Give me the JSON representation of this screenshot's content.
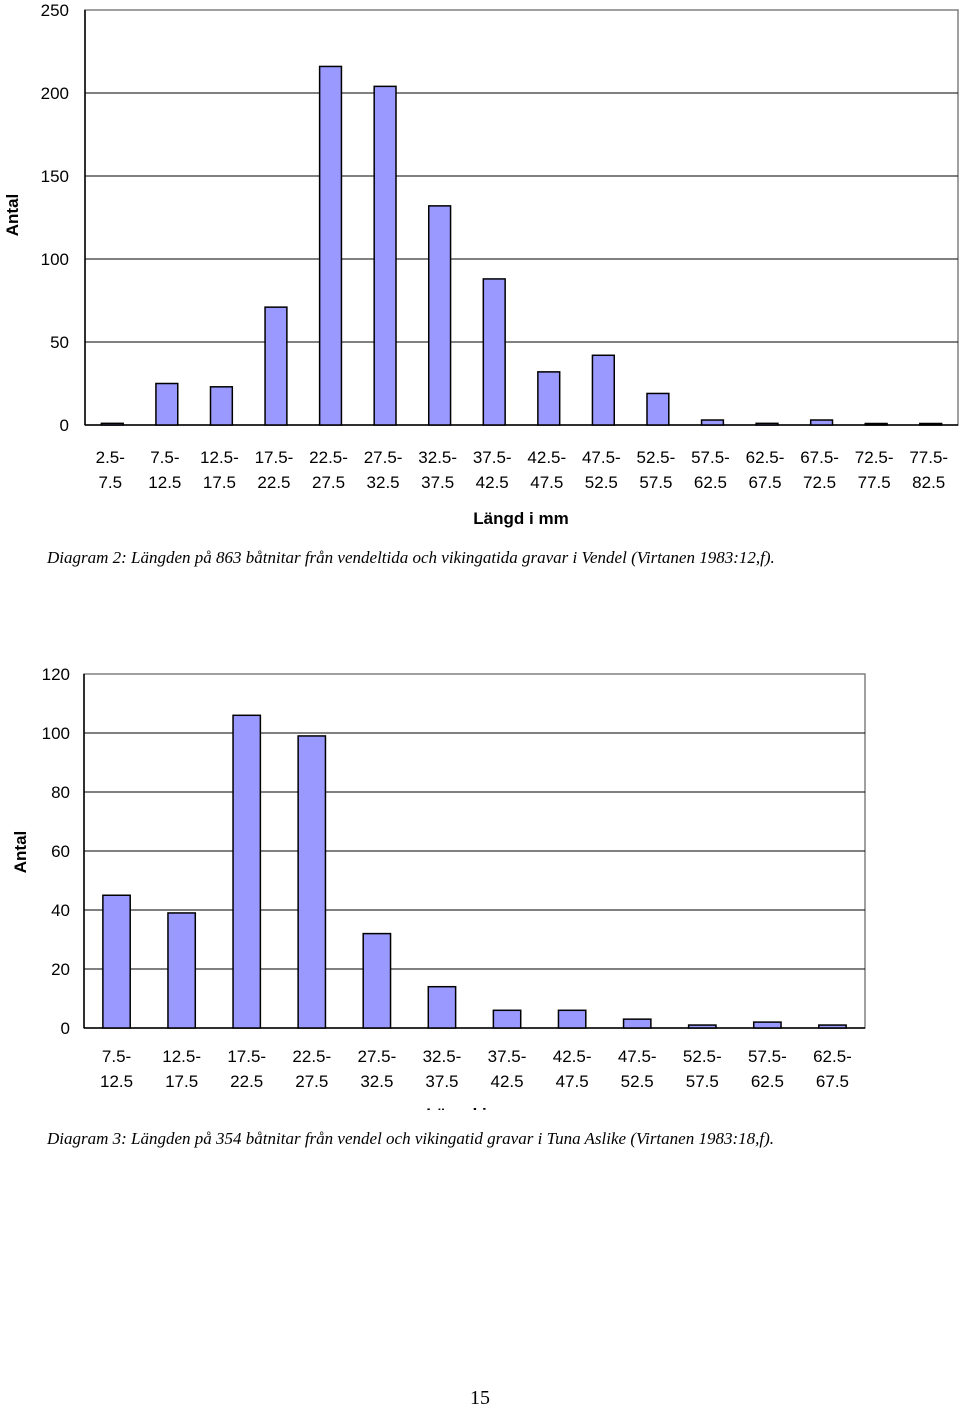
{
  "chart_data": [
    {
      "type": "bar",
      "title": "",
      "xlabel": "Längd i mm",
      "ylabel": "Antal",
      "ylim": [
        0,
        250
      ],
      "yticks": [
        0,
        50,
        100,
        150,
        200,
        250
      ],
      "grid": true,
      "bar_color": "#9999ff",
      "categories": [
        [
          "2.5-",
          "7.5"
        ],
        [
          "7.5-",
          "12.5"
        ],
        [
          "12.5-",
          "17.5"
        ],
        [
          "17.5-",
          "22.5"
        ],
        [
          "22.5-",
          "27.5"
        ],
        [
          "27.5-",
          "32.5"
        ],
        [
          "32.5-",
          "37.5"
        ],
        [
          "37.5-",
          "42.5"
        ],
        [
          "42.5-",
          "47.5"
        ],
        [
          "47.5-",
          "52.5"
        ],
        [
          "52.5-",
          "57.5"
        ],
        [
          "57.5-",
          "62.5"
        ],
        [
          "62.5-",
          "67.5"
        ],
        [
          "67.5-",
          "72.5"
        ],
        [
          "72.5-",
          "77.5"
        ],
        [
          "77.5-",
          "82.5"
        ]
      ],
      "values": [
        1,
        25,
        23,
        71,
        216,
        204,
        132,
        88,
        32,
        42,
        19,
        3,
        1,
        3,
        0.5,
        0.5
      ]
    },
    {
      "type": "bar",
      "title": "",
      "xlabel": "Längd i mm",
      "ylabel": "Antal",
      "ylim": [
        0,
        120
      ],
      "yticks": [
        0,
        20,
        40,
        60,
        80,
        100,
        120
      ],
      "grid": true,
      "bar_color": "#9999ff",
      "categories": [
        [
          "7.5-",
          "12.5"
        ],
        [
          "12.5-",
          "17.5"
        ],
        [
          "17.5-",
          "22.5"
        ],
        [
          "22.5-",
          "27.5"
        ],
        [
          "27.5-",
          "32.5"
        ],
        [
          "32.5-",
          "37.5"
        ],
        [
          "37.5-",
          "42.5"
        ],
        [
          "42.5-",
          "47.5"
        ],
        [
          "47.5-",
          "52.5"
        ],
        [
          "52.5-",
          "57.5"
        ],
        [
          "57.5-",
          "62.5"
        ],
        [
          "62.5-",
          "67.5"
        ]
      ],
      "values": [
        45,
        39,
        106,
        99,
        32,
        14,
        6,
        6,
        3,
        1,
        2,
        1
      ]
    }
  ],
  "captions": {
    "diagram2": "Diagram 2:  Längden på 863  båtnitar från vendeltida och vikingatida gravar i Vendel  (Virtanen 1983:12,f).",
    "diagram3": "Diagram 3: Längden på 354 båtnitar från vendel och vikingatid gravar i Tuna Aslike (Virtanen 1983:18,f)."
  },
  "page_number": "15"
}
